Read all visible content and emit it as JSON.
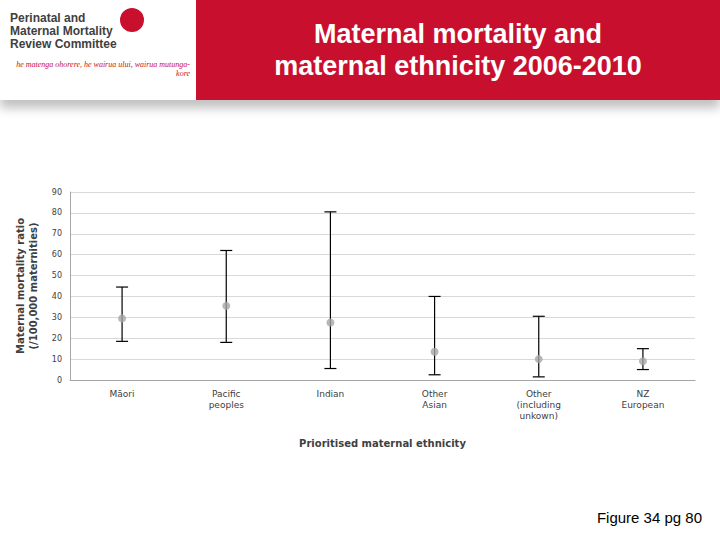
{
  "slide": {
    "logo": [
      "Perinatal and",
      "Maternal Mortality",
      "Review Committee"
    ],
    "motto": "he matenga ohorere, he wairua ului, wairua mutunga-kore",
    "footnote": "Figure 34 pg 80"
  },
  "chart_data": {
    "type": "scatter",
    "title": "Maternal mortality and\nmaternal ethnicity 2006-2010",
    "xlabel": "Prioritised maternal ethnicity",
    "ylabel": "Maternal mortality ratio\n(/100,000 maternities)",
    "categories": [
      "Māori",
      "Pacific\npeoples",
      "Indian",
      "Other\nAsian",
      "Other\n(including\nunkown)",
      "NZ\nEuropean"
    ],
    "values": [
      29.5,
      35.5,
      27.5,
      13.5,
      10,
      9
    ],
    "lower": [
      18.5,
      18,
      5.5,
      2.5,
      1.5,
      5
    ],
    "upper": [
      44.5,
      62,
      80.5,
      40,
      30.5,
      15
    ],
    "color": "#a6a6a6",
    "marker": "circle",
    "ylim": [
      0,
      90
    ],
    "yticks": [
      0,
      10,
      20,
      30,
      40,
      50,
      60,
      70,
      80,
      90
    ],
    "grid": true
  }
}
